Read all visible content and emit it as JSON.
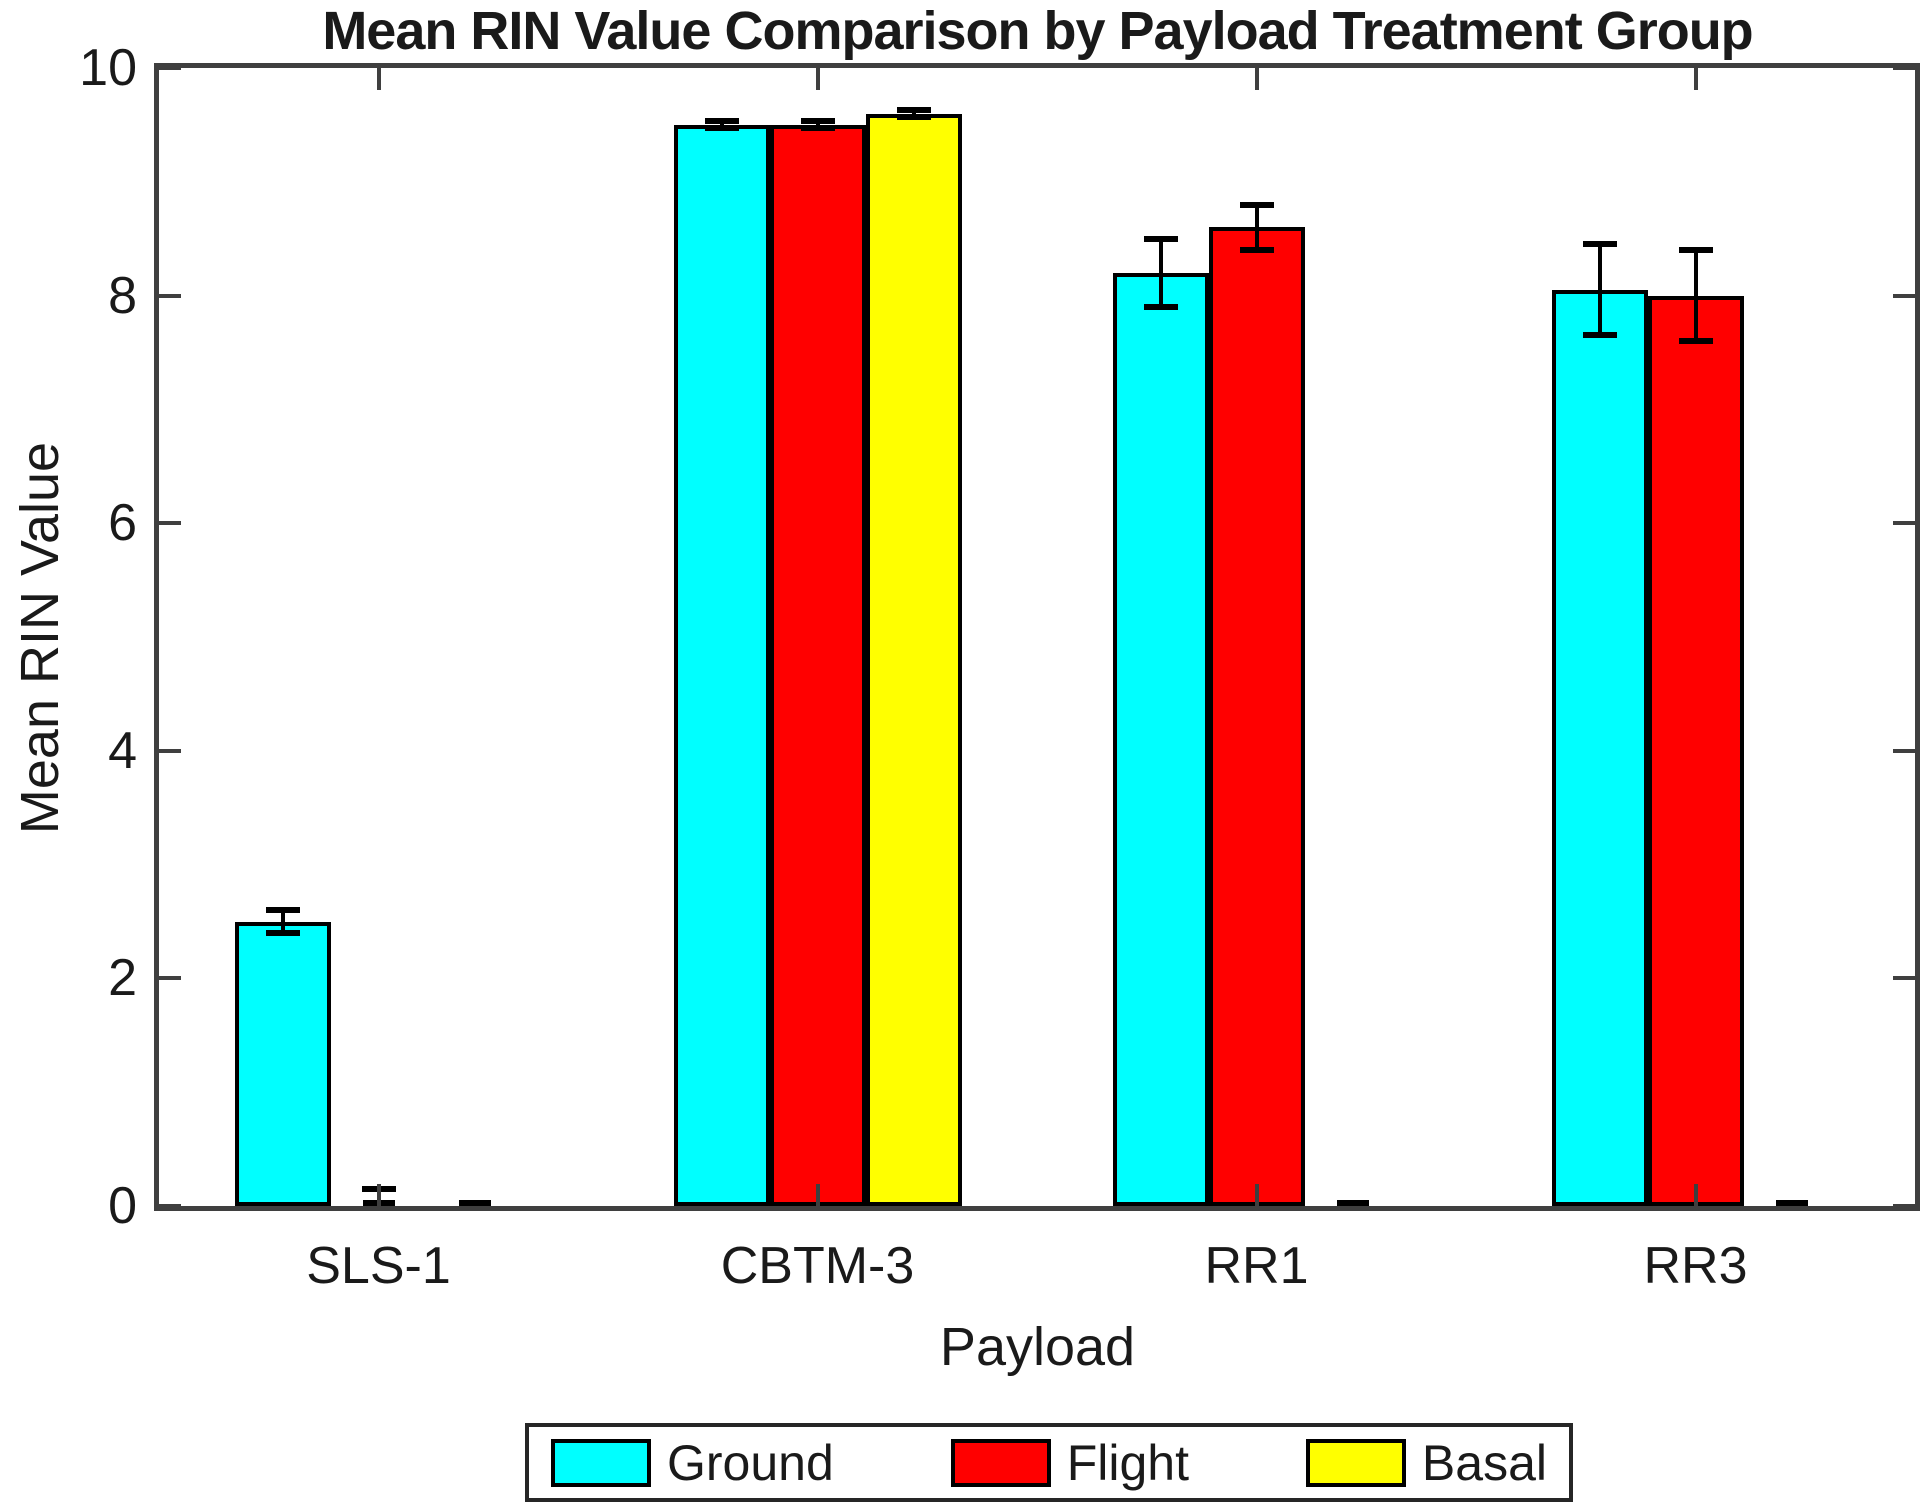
{
  "figure": {
    "background": "#ffffff",
    "axis_color": "#3f3f3f",
    "text_color": "#1a1a1a"
  },
  "chart_data": {
    "type": "bar",
    "title": "Mean RIN Value Comparison by Payload Treatment Group",
    "xlabel": "Payload",
    "ylabel": "Mean RIN Value",
    "categories": [
      "SLS-1",
      "CBTM-3",
      "RR1",
      "RR3"
    ],
    "ylim": [
      0,
      10
    ],
    "yticks": [
      0,
      2,
      4,
      6,
      8,
      10
    ],
    "grid": false,
    "legend_position": "bottom",
    "bar_outline_color": "#000000",
    "error_bar_color": "#000000",
    "series": [
      {
        "name": "Ground",
        "color": "#00ffff",
        "values": [
          2.5,
          9.5,
          8.2,
          8.05
        ],
        "errors": [
          0.1,
          0.03,
          0.3,
          0.4
        ]
      },
      {
        "name": "Flight",
        "color": "#ff0000",
        "values": [
          0,
          9.5,
          8.6,
          8.0
        ],
        "errors": [
          0.15,
          0.03,
          0.2,
          0.4
        ]
      },
      {
        "name": "Basal",
        "color": "#ffff00",
        "values": [
          0,
          9.6,
          0,
          0
        ],
        "errors": [
          0,
          0.03,
          0,
          0
        ]
      }
    ]
  }
}
